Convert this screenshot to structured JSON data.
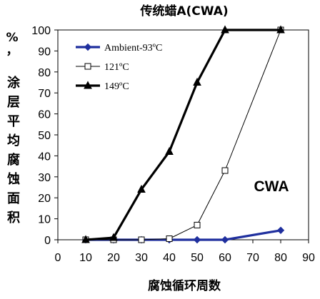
{
  "chart_data": {
    "type": "line",
    "title": "传统蜡A(CWA)",
    "xlabel": "腐蚀循环周数",
    "ylabel": "涂层平均腐蚀面积，%",
    "annotation": "CWA",
    "xlim": [
      0,
      90
    ],
    "ylim": [
      0,
      100
    ],
    "xticks": [
      0,
      10,
      20,
      30,
      40,
      50,
      60,
      70,
      80,
      90
    ],
    "yticks": [
      0,
      10,
      20,
      30,
      40,
      50,
      60,
      70,
      80,
      90,
      100
    ],
    "grid": false,
    "legend_position": "top-left",
    "series": [
      {
        "name": "Ambient-93ºC",
        "color": "#1f2f9e",
        "marker": "diamond",
        "line_style": "bold",
        "x": [
          10,
          20,
          30,
          40,
          50,
          60,
          80
        ],
        "y": [
          0,
          0,
          0,
          0,
          0,
          0,
          4.5
        ]
      },
      {
        "name": "121ºC",
        "color": "#000000",
        "marker": "open-square",
        "line_style": "thin",
        "x": [
          10,
          20,
          30,
          40,
          50,
          60,
          80
        ],
        "y": [
          0,
          0,
          0,
          0.5,
          7,
          33,
          100
        ]
      },
      {
        "name": "149ºC",
        "color": "#000000",
        "marker": "triangle",
        "line_style": "bold",
        "x": [
          10,
          20,
          30,
          40,
          50,
          60,
          80
        ],
        "y": [
          0,
          1,
          24,
          42,
          75,
          100,
          100
        ]
      }
    ]
  }
}
